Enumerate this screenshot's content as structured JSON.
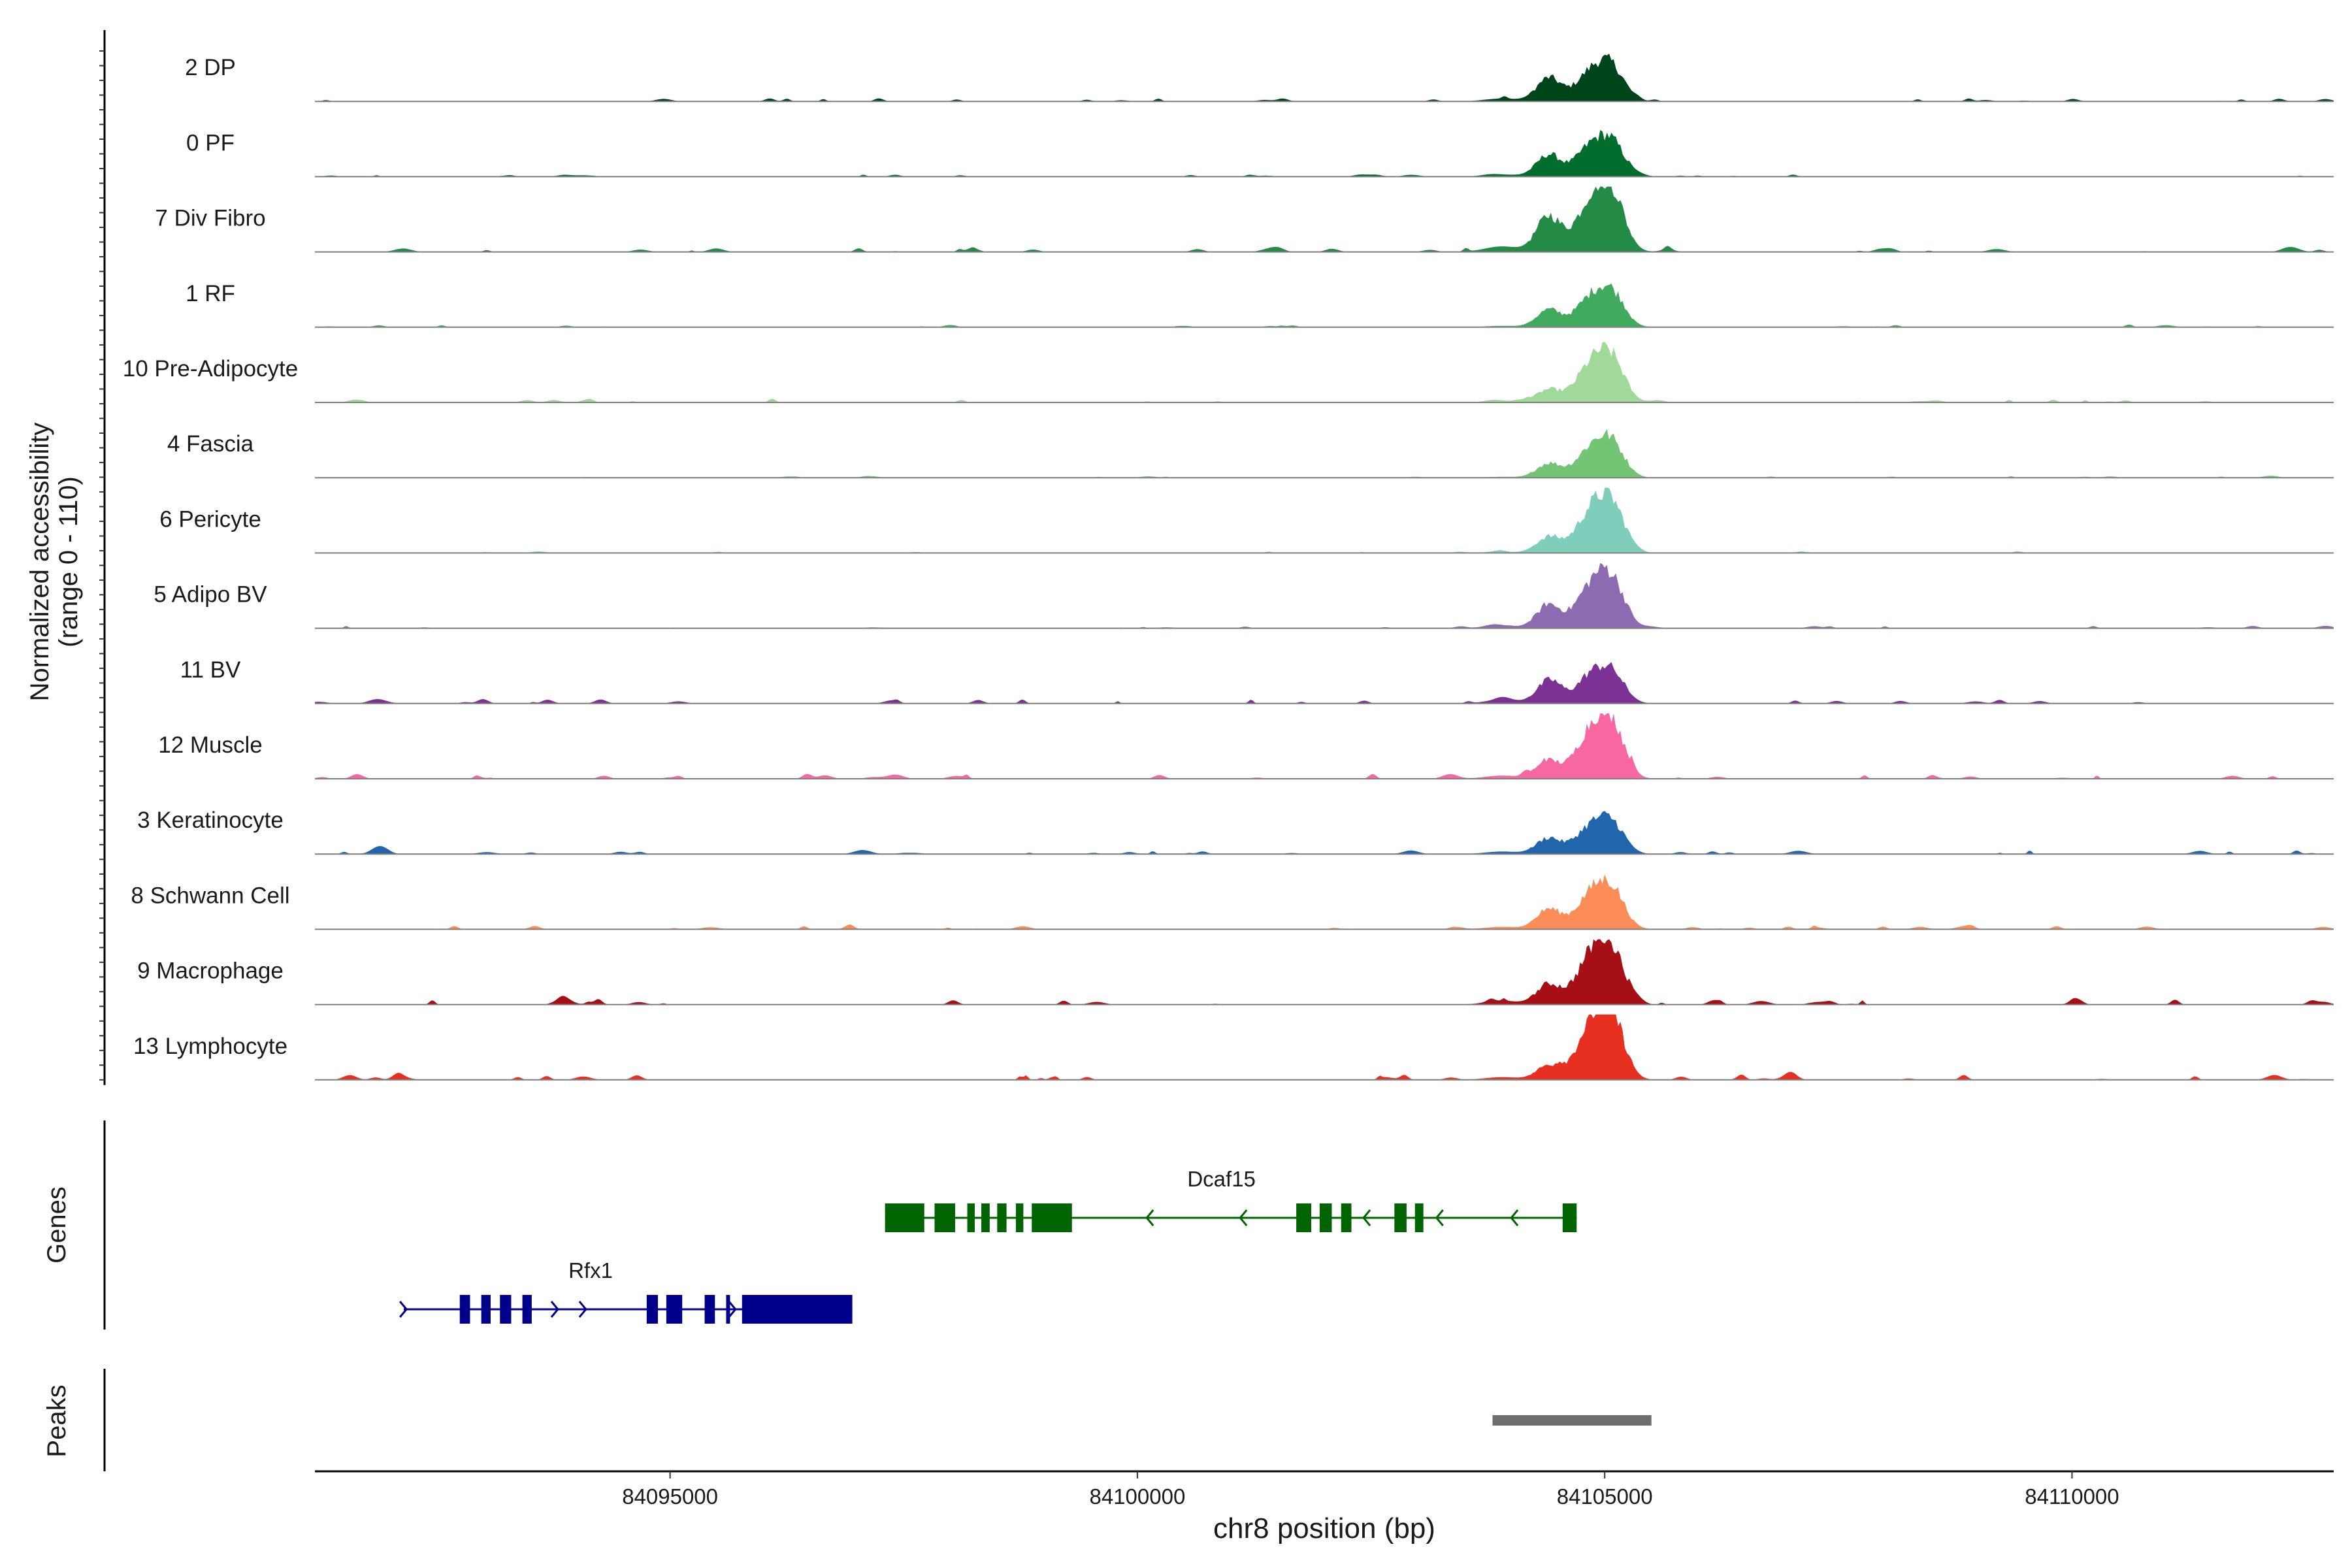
{
  "chart_data": {
    "type": "area",
    "title": "",
    "ylabel_line1": "Normalized accessibility",
    "ylabel_line2": "(range 0 - 110)",
    "xlabel": "chr8 position (bp)",
    "ylim": [
      0,
      110
    ],
    "xlim": [
      84091200,
      84112800
    ],
    "x_ticks": [
      {
        "value": 84095000,
        "label": "84095000"
      },
      {
        "value": 84100000,
        "label": "84100000"
      },
      {
        "value": 84105000,
        "label": "84105000"
      },
      {
        "value": 84110000,
        "label": "84110000"
      }
    ],
    "tracks": [
      {
        "name": "2 DP",
        "color": "#00441b",
        "peak_a": 40,
        "peak_b": 55,
        "bg": 0.08
      },
      {
        "name": "0 PF",
        "color": "#006d2c",
        "peak_a": 38,
        "peak_b": 55,
        "bg": 0.06
      },
      {
        "name": "7 Div Fibro",
        "color": "#238b45",
        "peak_a": 62,
        "peak_b": 95,
        "bg": 0.1
      },
      {
        "name": "1 RF",
        "color": "#41ab5d",
        "peak_a": 30,
        "peak_b": 55,
        "bg": 0.05
      },
      {
        "name": "10 Pre-Adipocyte",
        "color": "#a1d99b",
        "peak_a": 22,
        "peak_b": 70,
        "bg": 0.07
      },
      {
        "name": "4 Fascia",
        "color": "#74c476",
        "peak_a": 25,
        "peak_b": 55,
        "bg": 0.04
      },
      {
        "name": "6 Pericyte",
        "color": "#7fcdbb",
        "peak_a": 28,
        "peak_b": 78,
        "bg": 0.04
      },
      {
        "name": "5 Adipo BV",
        "color": "#8c6bb1",
        "peak_a": 40,
        "peak_b": 78,
        "bg": 0.06
      },
      {
        "name": "11 BV",
        "color": "#7b3294",
        "peak_a": 38,
        "peak_b": 50,
        "bg": 0.1
      },
      {
        "name": "12 Muscle",
        "color": "#f768a1",
        "peak_a": 30,
        "peak_b": 90,
        "bg": 0.12
      },
      {
        "name": "3 Keratinocyte",
        "color": "#2166ac",
        "peak_a": 28,
        "peak_b": 50,
        "bg": 0.1
      },
      {
        "name": "8 Schwann Cell",
        "color": "#fc8d59",
        "peak_a": 35,
        "peak_b": 65,
        "bg": 0.08
      },
      {
        "name": "9 Macrophage",
        "color": "#a50f15",
        "peak_a": 35,
        "peak_b": 90,
        "bg": 0.12
      },
      {
        "name": "13 Lymphocyte",
        "color": "#e7301f",
        "peak_a": 25,
        "peak_b": 100,
        "bg": 0.12
      }
    ],
    "genes_label": "Genes",
    "genes": [
      {
        "name": "Dcaf15",
        "color": "#006400",
        "strand": "-",
        "start": 84097300,
        "end": 84104700,
        "exons": [
          [
            84097300,
            84097720
          ],
          [
            84097830,
            84098050
          ],
          [
            84098180,
            84098260
          ],
          [
            84098330,
            84098420
          ],
          [
            84098500,
            84098600
          ],
          [
            84098700,
            84098780
          ],
          [
            84098870,
            84099300
          ],
          [
            84101700,
            84101860
          ],
          [
            84101950,
            84102080
          ],
          [
            84102180,
            84102290
          ],
          [
            84102750,
            84102880
          ],
          [
            84102970,
            84103060
          ],
          [
            84104550,
            84104700
          ]
        ],
        "arrows": [
          84100100,
          84101100,
          84102420,
          84103200,
          84104000
        ]
      },
      {
        "name": "Rfx1",
        "color": "#00008b",
        "strand": "+",
        "start": 84092150,
        "end": 84096950,
        "exons": [
          [
            84092750,
            84092860
          ],
          [
            84092980,
            84093080
          ],
          [
            84093180,
            84093300
          ],
          [
            84093420,
            84093520
          ],
          [
            84094750,
            84094870
          ],
          [
            84094960,
            84095130
          ],
          [
            84095370,
            84095480
          ],
          [
            84095600,
            84095620
          ],
          [
            84095770,
            84096950
          ]
        ],
        "arrows": [
          84092180,
          84093800,
          84094100,
          84095700
        ]
      }
    ],
    "peaks_label": "Peaks",
    "peaks": [
      {
        "start": 84103800,
        "end": 84105500,
        "color": "#6e6e6e"
      }
    ]
  }
}
